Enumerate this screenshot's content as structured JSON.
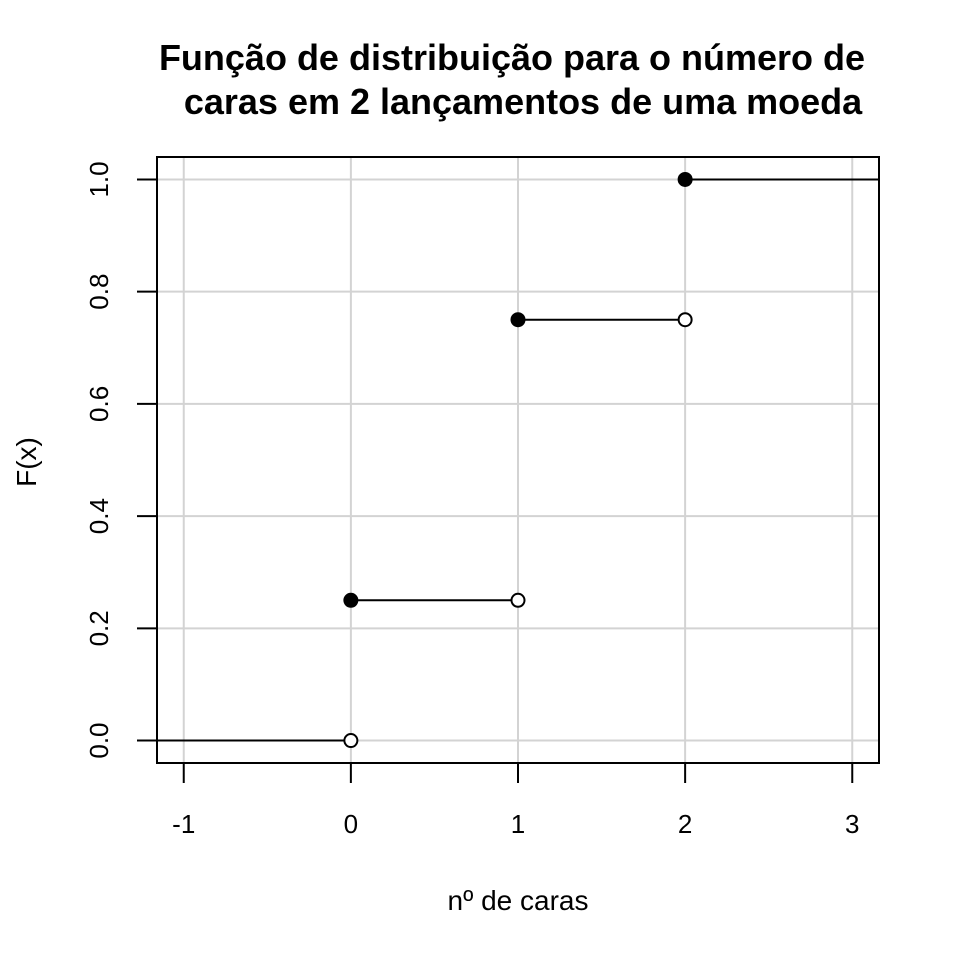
{
  "chart_data": {
    "type": "line",
    "title_lines": [
      "Função de distribuição para o número de",
      "caras em 2 lançamentos de uma moeda"
    ],
    "xlabel": "nº de caras",
    "ylabel": "F(x)",
    "xlim": [
      -1.16,
      3.16
    ],
    "ylim": [
      -0.04,
      1.04
    ],
    "xticks": [
      -1,
      0,
      1,
      2,
      3
    ],
    "xtick_labels": [
      "-1",
      "0",
      "1",
      "2",
      "3"
    ],
    "yticks": [
      0,
      0.2,
      0.4,
      0.6,
      0.8,
      1.0
    ],
    "ytick_labels": [
      "0.0",
      "0.2",
      "0.4",
      "0.6",
      "0.8",
      "1.0"
    ],
    "grid": true,
    "step_function": [
      {
        "x_start": -1.16,
        "x_end": 0,
        "y": 0.0,
        "start_point": "none",
        "end_point": "open"
      },
      {
        "x_start": 0,
        "x_end": 1,
        "y": 0.25,
        "start_point": "closed",
        "end_point": "open"
      },
      {
        "x_start": 1,
        "x_end": 2,
        "y": 0.75,
        "start_point": "closed",
        "end_point": "open"
      },
      {
        "x_start": 2,
        "x_end": 3.16,
        "y": 1.0,
        "start_point": "closed",
        "end_point": "none"
      }
    ],
    "colors": {
      "line": "#000000",
      "grid": "#d3d3d3",
      "background": "#ffffff"
    }
  }
}
